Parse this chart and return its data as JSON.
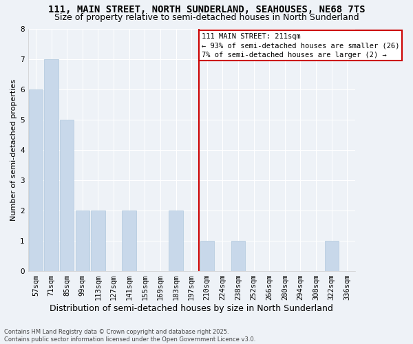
{
  "title": "111, MAIN STREET, NORTH SUNDERLAND, SEAHOUSES, NE68 7TS",
  "subtitle": "Size of property relative to semi-detached houses in North Sunderland",
  "xlabel": "Distribution of semi-detached houses by size in North Sunderland",
  "ylabel": "Number of semi-detached properties",
  "footnote1": "Contains HM Land Registry data © Crown copyright and database right 2025.",
  "footnote2": "Contains public sector information licensed under the Open Government Licence v3.0.",
  "categories": [
    "57sqm",
    "71sqm",
    "85sqm",
    "99sqm",
    "113sqm",
    "127sqm",
    "141sqm",
    "155sqm",
    "169sqm",
    "183sqm",
    "197sqm",
    "210sqm",
    "224sqm",
    "238sqm",
    "252sqm",
    "266sqm",
    "280sqm",
    "294sqm",
    "308sqm",
    "322sqm",
    "336sqm"
  ],
  "values": [
    6,
    7,
    5,
    2,
    2,
    0,
    2,
    0,
    0,
    2,
    0,
    1,
    0,
    1,
    0,
    0,
    0,
    0,
    0,
    1,
    0
  ],
  "bar_color": "#c8d8ea",
  "bar_edgecolor": "#b0c8dc",
  "vline_color": "#cc0000",
  "annotation_text": "111 MAIN STREET: 211sqm\n← 93% of semi-detached houses are smaller (26)\n7% of semi-detached houses are larger (2) →",
  "ylim": [
    0,
    8
  ],
  "yticks": [
    0,
    1,
    2,
    3,
    4,
    5,
    6,
    7,
    8
  ],
  "bg_color": "#eef2f7",
  "title_fontsize": 10,
  "subtitle_fontsize": 9,
  "xlabel_fontsize": 9,
  "ylabel_fontsize": 8,
  "tick_fontsize": 7.5,
  "annotation_fontsize": 7.5
}
